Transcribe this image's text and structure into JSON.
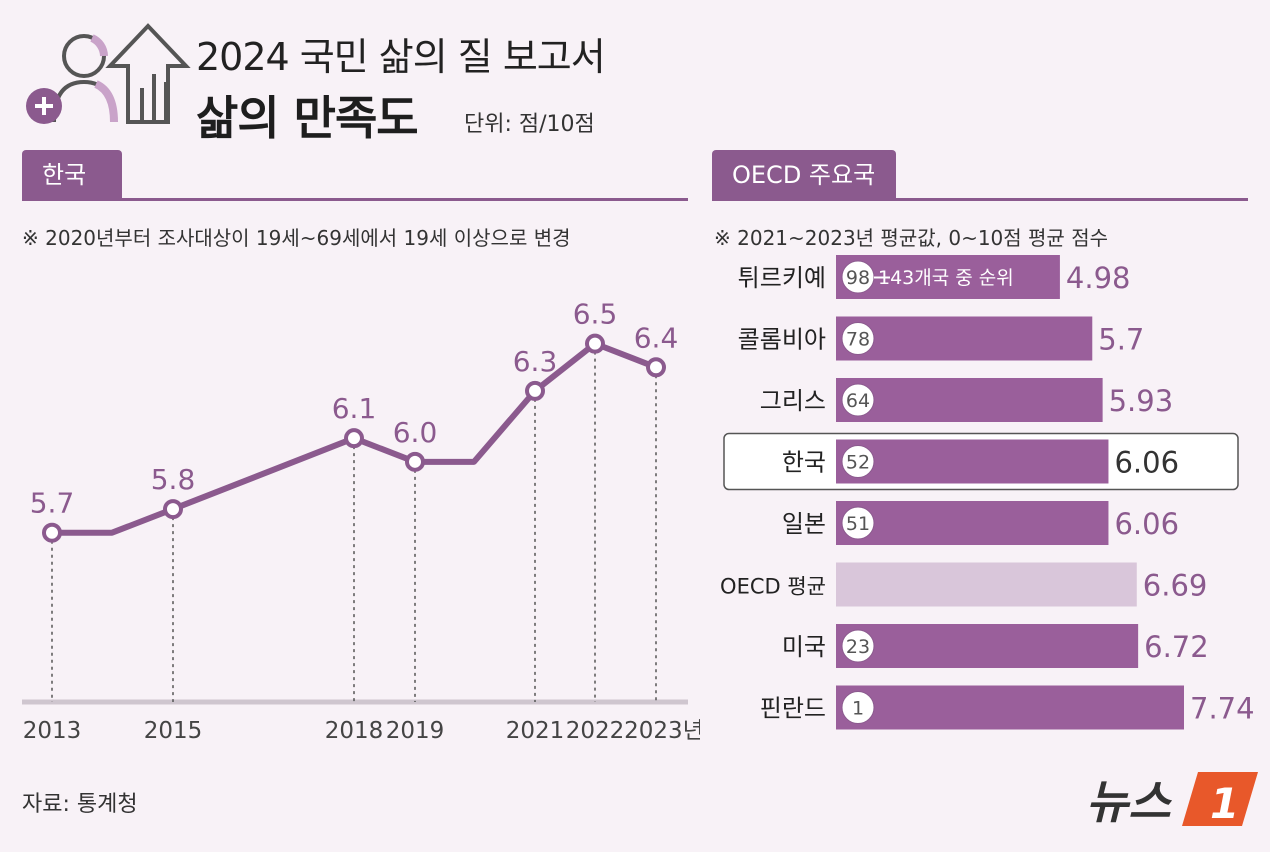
{
  "header": {
    "title_top": "2024 국민 삶의 질 보고서",
    "title_main": "삶의 만족도",
    "unit": "단위: 점/10점"
  },
  "left": {
    "tab": "한국",
    "note": "※ 2020년부터 조사대상이 19세~69세에서 19세 이상으로 변경"
  },
  "right": {
    "tab": "OECD 주요국",
    "note": "※ 2021~2023년 평균값, 0~10점 평균 점수"
  },
  "source": "자료: 통계청",
  "logo_text": "뉴스",
  "logo_mark": "1",
  "colors": {
    "accent": "#8b5a8e",
    "bar": "#9a5f9b",
    "bar_avg": "#d9c6da",
    "background": "#f8f2f7",
    "logo_orange": "#e8582a"
  },
  "chart_data": [
    {
      "type": "line",
      "x": [
        "2013",
        "2014",
        "2015",
        "2018",
        "2019",
        "2020",
        "2021",
        "2022",
        "2023"
      ],
      "values": [
        5.7,
        5.7,
        5.8,
        6.1,
        6.0,
        6.0,
        6.3,
        6.5,
        6.4
      ],
      "markers": [
        {
          "x": "2013",
          "value": 5.7,
          "label": "5.7"
        },
        {
          "x": "2015",
          "value": 5.8,
          "label": "5.8"
        },
        {
          "x": "2018",
          "value": 6.1,
          "label": "6.1"
        },
        {
          "x": "2019",
          "value": 6.0,
          "label": "6.0"
        },
        {
          "x": "2021",
          "value": 6.3,
          "label": "6.3"
        },
        {
          "x": "2022",
          "value": 6.5,
          "label": "6.5"
        },
        {
          "x": "2023",
          "value": 6.4,
          "label": "6.4"
        }
      ],
      "tick_labels": [
        "2013",
        "2015",
        "2018",
        "2019",
        "2021",
        "2022",
        "2023년"
      ],
      "ylim": [
        5.5,
        6.6
      ]
    },
    {
      "type": "bar",
      "orientation": "horizontal",
      "categories": [
        "튀르키예",
        "콜롬비아",
        "그리스",
        "한국",
        "일본",
        "OECD 평균",
        "미국",
        "핀란드"
      ],
      "values": [
        4.98,
        5.7,
        5.93,
        6.06,
        6.06,
        6.69,
        6.72,
        7.74
      ],
      "value_labels": [
        "4.98",
        "5.7",
        "5.93",
        "6.06",
        "6.06",
        "6.69",
        "6.72",
        "7.74"
      ],
      "ranks": [
        "98",
        "78",
        "64",
        "52",
        "51",
        "",
        "23",
        "1"
      ],
      "rank_note": "143개국 중 순위",
      "highlight": "한국",
      "xlim": [
        0,
        7.74
      ]
    }
  ]
}
